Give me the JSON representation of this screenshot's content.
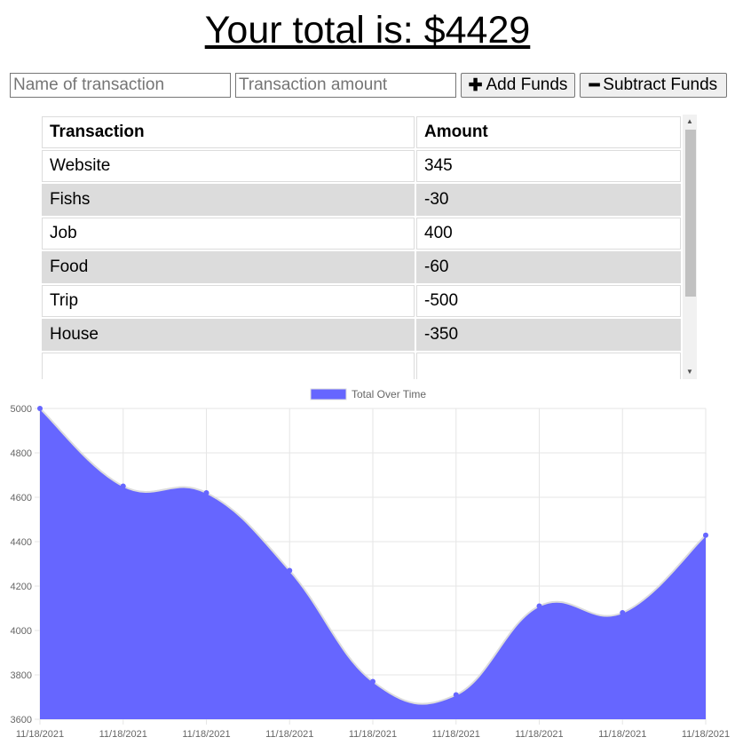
{
  "header": {
    "total_text": "Your total is: $4429"
  },
  "form": {
    "name_placeholder": "Name of transaction",
    "amount_placeholder": "Transaction amount",
    "add_label": "Add Funds",
    "subtract_label": "Subtract Funds"
  },
  "table": {
    "headers": [
      "Transaction",
      "Amount"
    ],
    "rows": [
      {
        "name": "Website",
        "amount": "345"
      },
      {
        "name": "Fishs",
        "amount": "-30"
      },
      {
        "name": "Job",
        "amount": "400"
      },
      {
        "name": "Food",
        "amount": "-60"
      },
      {
        "name": "Trip",
        "amount": "-500"
      },
      {
        "name": "House",
        "amount": "-350"
      },
      {
        "name": "",
        "amount": ""
      }
    ]
  },
  "colors": {
    "fill": "#6666ff",
    "line": "#dcdcdc",
    "point": "#6666ff"
  },
  "chart_data": {
    "type": "area",
    "legend": {
      "label": "Total Over Time",
      "position": "top"
    },
    "x": [
      "11/18/2021",
      "11/18/2021",
      "11/18/2021",
      "11/18/2021",
      "11/18/2021",
      "11/18/2021",
      "11/18/2021",
      "11/18/2021",
      "11/18/2021"
    ],
    "series": [
      {
        "name": "Total Over Time",
        "values": [
          5000,
          4650,
          4620,
          4270,
          3770,
          3710,
          4110,
          4080,
          4429
        ]
      }
    ],
    "ylim": [
      3600,
      5000
    ],
    "yticks": [
      3600,
      3800,
      4000,
      4200,
      4400,
      4600,
      4800,
      5000
    ],
    "grid": true
  }
}
